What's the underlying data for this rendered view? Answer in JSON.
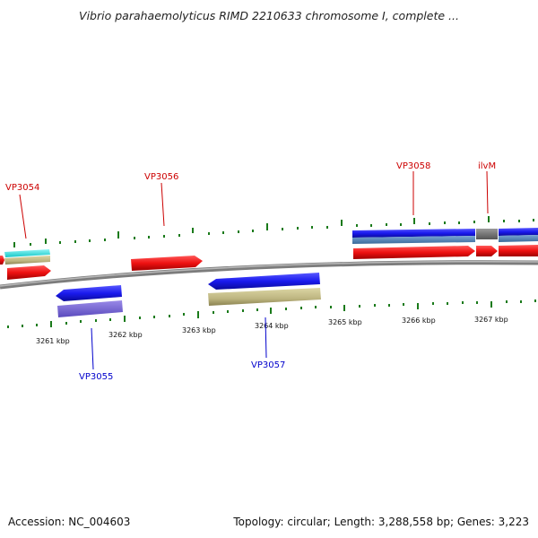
{
  "title": "Vibrio parahaemolyticus RIMD 2210633 chromosome I, complete ...",
  "footer": {
    "accession": "Accession: NC_004603",
    "summary": "Topology: circular; Length: 3,288,558 bp; Genes: 3,223"
  },
  "scale": {
    "tick_labels": [
      "3261 kbp",
      "3262 kbp",
      "3263 kbp",
      "3264 kbp",
      "3265 kbp",
      "3266 kbp",
      "3267 kbp"
    ]
  },
  "gene_labels": [
    {
      "name": "VP3054",
      "strand": "plus"
    },
    {
      "name": "VP3056",
      "strand": "plus"
    },
    {
      "name": "VP3058",
      "strand": "plus"
    },
    {
      "name": "ilvM",
      "strand": "plus"
    },
    {
      "name": "VP3055",
      "strand": "minus"
    },
    {
      "name": "VP3057",
      "strand": "minus"
    }
  ],
  "colors": {
    "plus_label": "#cc0000",
    "minus_label": "#0000cc",
    "gene_red": "#ee1111",
    "gene_blue": "#1a1aee",
    "gene_steel": "#4a7fb5",
    "gene_khaki": "#bdb580",
    "gene_purple": "#6a5acd",
    "gene_cyan": "#22dddd",
    "gene_gray": "#707070",
    "backbone": "#8c8c8c",
    "tick_green": "#1a7a1a"
  }
}
